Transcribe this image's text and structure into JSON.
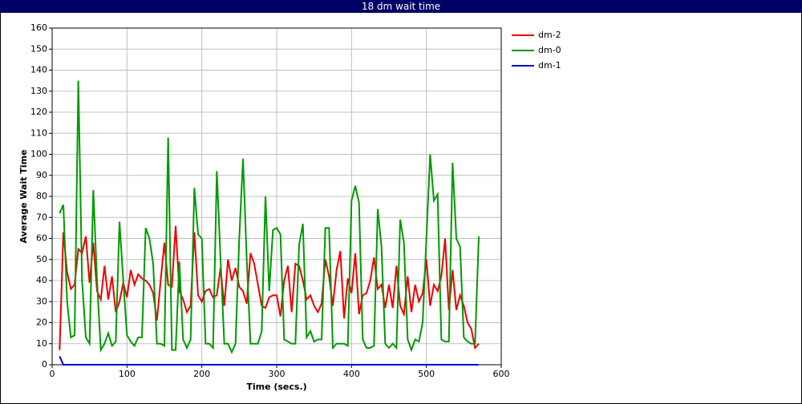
{
  "chart_data": {
    "type": "line",
    "title": "18 dm wait time",
    "x_label": "Time (secs.)",
    "y_label": "Average Wait Time",
    "xlim": [
      0,
      600
    ],
    "xticks": [
      0,
      100,
      200,
      300,
      400,
      500,
      600
    ],
    "ylim": [
      0,
      160
    ],
    "yticks": [
      0,
      10,
      20,
      30,
      40,
      50,
      60,
      70,
      80,
      90,
      100,
      110,
      120,
      130,
      140,
      150,
      160
    ],
    "grid": true,
    "legend": "right",
    "x": [
      10,
      15,
      20,
      25,
      30,
      35,
      40,
      45,
      50,
      55,
      60,
      65,
      70,
      75,
      80,
      85,
      90,
      95,
      100,
      105,
      110,
      115,
      120,
      125,
      130,
      135,
      140,
      145,
      150,
      155,
      160,
      165,
      170,
      175,
      180,
      185,
      190,
      195,
      200,
      205,
      210,
      215,
      220,
      225,
      230,
      235,
      240,
      245,
      250,
      255,
      260,
      265,
      270,
      275,
      280,
      285,
      290,
      295,
      300,
      305,
      310,
      315,
      320,
      325,
      330,
      335,
      340,
      345,
      350,
      355,
      360,
      365,
      370,
      375,
      380,
      385,
      390,
      395,
      400,
      405,
      410,
      415,
      420,
      425,
      430,
      435,
      440,
      445,
      450,
      455,
      460,
      465,
      470,
      475,
      480,
      485,
      490,
      495,
      500,
      505,
      510,
      515,
      520,
      525,
      530,
      535,
      540,
      545,
      550,
      555,
      560,
      565,
      570
    ],
    "series": [
      {
        "name": "dm-2",
        "color": "#ee0000",
        "values": [
          7,
          63,
          44,
          36,
          38,
          55,
          53,
          61,
          39,
          58,
          35,
          31,
          47,
          31,
          42,
          25,
          30,
          39,
          32,
          45,
          38,
          43,
          41,
          40,
          38,
          34,
          21,
          40,
          58,
          38,
          37,
          66,
          35,
          31,
          25,
          28,
          63,
          33,
          30,
          35,
          36,
          32,
          33,
          46,
          28,
          50,
          40,
          46,
          37,
          35,
          29,
          53,
          48,
          38,
          28,
          27,
          32,
          33,
          33,
          23,
          40,
          47,
          25,
          48,
          47,
          40,
          31,
          33,
          28,
          25,
          29,
          50,
          42,
          28,
          45,
          54,
          22,
          41,
          34,
          53,
          24,
          33,
          34,
          40,
          51,
          36,
          38,
          27,
          38,
          27,
          47,
          28,
          24,
          42,
          25,
          38,
          30,
          34,
          50,
          28,
          38,
          35,
          42,
          60,
          26,
          45,
          26,
          33,
          28,
          20,
          17,
          8,
          10
        ]
      },
      {
        "name": "dm-0",
        "color": "#009900",
        "values": [
          72,
          76,
          30,
          13,
          14,
          135,
          40,
          13,
          10,
          83,
          40,
          7,
          10,
          15,
          9,
          11,
          68,
          40,
          14,
          11,
          9,
          13,
          13,
          65,
          60,
          48,
          10,
          10,
          9,
          108,
          7,
          7,
          49,
          12,
          8,
          12,
          84,
          62,
          60,
          10,
          10,
          8,
          92,
          50,
          10,
          10,
          6,
          10,
          60,
          98,
          50,
          10,
          10,
          10,
          16,
          80,
          35,
          64,
          65,
          62,
          12,
          11,
          10,
          10,
          57,
          67,
          13,
          16,
          11,
          12,
          12,
          65,
          65,
          8,
          10,
          10,
          10,
          9,
          78,
          85,
          77,
          12,
          8,
          8,
          9,
          74,
          56,
          10,
          8,
          10,
          8,
          69,
          58,
          12,
          7,
          12,
          11,
          20,
          60,
          100,
          78,
          81,
          12,
          11,
          11,
          96,
          60,
          56,
          13,
          11,
          10,
          10,
          61
        ]
      },
      {
        "name": "dm-1",
        "color": "#0000cc",
        "values": [
          4,
          0,
          0,
          0,
          0,
          0,
          0,
          0,
          0,
          0,
          0,
          0,
          0,
          0,
          0,
          0,
          0,
          0,
          0,
          0,
          0,
          0,
          0,
          0,
          0,
          0,
          0,
          0,
          0,
          0,
          0,
          0,
          0,
          0,
          0,
          0,
          0,
          0,
          0,
          0,
          0,
          0,
          0,
          0,
          0,
          0,
          0,
          0,
          0,
          0,
          0,
          0,
          0,
          0,
          0,
          0,
          0,
          0,
          0,
          0,
          0,
          0,
          0,
          0,
          0,
          0,
          0,
          0,
          0,
          0,
          0,
          0,
          0,
          0,
          0,
          0,
          0,
          0,
          0,
          0,
          0,
          0,
          0,
          0,
          0,
          0,
          0,
          0,
          0,
          0,
          0,
          0,
          0,
          0,
          0,
          0,
          0,
          0,
          0,
          0,
          0,
          0,
          0,
          0,
          0,
          0,
          0,
          0,
          0,
          0,
          0,
          0,
          0
        ]
      }
    ]
  }
}
